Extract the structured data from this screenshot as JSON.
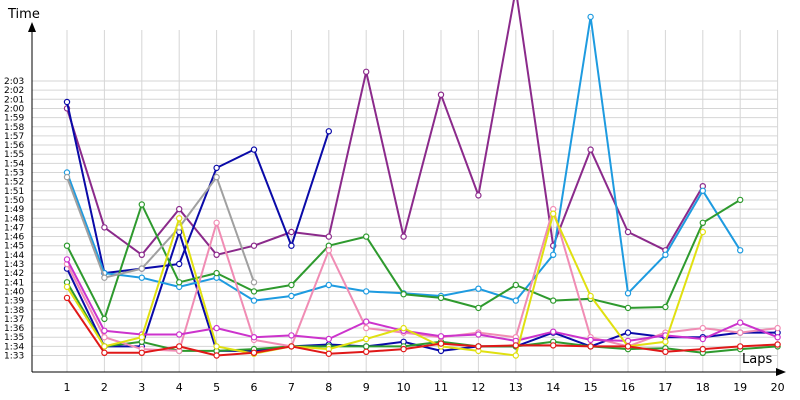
{
  "chart_data": {
    "type": "line",
    "xlabel": "Laps",
    "ylabel": "Time",
    "x": [
      1,
      2,
      3,
      4,
      5,
      6,
      7,
      8,
      9,
      10,
      11,
      12,
      13,
      14,
      15,
      16,
      17,
      18,
      19,
      20
    ],
    "x_ticks": [
      "1",
      "2",
      "3",
      "4",
      "5",
      "6",
      "7",
      "8",
      "9",
      "10",
      "11",
      "12",
      "13",
      "14",
      "15",
      "16",
      "17",
      "18",
      "19",
      "20"
    ],
    "ylim": [
      92.5,
      126
    ],
    "y_ticks": [
      {
        "v": 93,
        "label": "1:33"
      },
      {
        "v": 94,
        "label": "1:34"
      },
      {
        "v": 95,
        "label": "1:35"
      },
      {
        "v": 96,
        "label": "1:36"
      },
      {
        "v": 97,
        "label": "1:37"
      },
      {
        "v": 98,
        "label": "1:38"
      },
      {
        "v": 99,
        "label": "1:39"
      },
      {
        "v": 100,
        "label": "1:40"
      },
      {
        "v": 101,
        "label": "1:41"
      },
      {
        "v": 102,
        "label": "1:42"
      },
      {
        "v": 103,
        "label": "1:43"
      },
      {
        "v": 104,
        "label": "1:44"
      },
      {
        "v": 105,
        "label": "1:45"
      },
      {
        "v": 106,
        "label": "1:46"
      },
      {
        "v": 107,
        "label": "1:47"
      },
      {
        "v": 108,
        "label": "1:48"
      },
      {
        "v": 109,
        "label": "1:49"
      },
      {
        "v": 110,
        "label": "1:50"
      },
      {
        "v": 111,
        "label": "1:51"
      },
      {
        "v": 112,
        "label": "1:52"
      },
      {
        "v": 113,
        "label": "1:53"
      },
      {
        "v": 114,
        "label": "1:54"
      },
      {
        "v": 115,
        "label": "1:55"
      },
      {
        "v": 116,
        "label": "1:56"
      },
      {
        "v": 117,
        "label": "1:57"
      },
      {
        "v": 118,
        "label": "1:58"
      },
      {
        "v": 119,
        "label": "1:59"
      },
      {
        "v": 120,
        "label": "2:00"
      },
      {
        "v": 121,
        "label": "2:01"
      },
      {
        "v": 122,
        "label": "2:02"
      },
      {
        "v": 123,
        "label": "2:03"
      }
    ],
    "grid": true,
    "series": [
      {
        "color": "#8b2a8b",
        "values": [
          120,
          107,
          104,
          109,
          104,
          105,
          106.5,
          106,
          124,
          106,
          121.5,
          110.5,
          133,
          105,
          115.5,
          106.5,
          104.5,
          111.5,
          null,
          null
        ]
      },
      {
        "color": "#0a0aa8",
        "values": [
          120.7,
          102,
          102.5,
          103,
          113.5,
          115.5,
          105,
          117.5,
          null,
          null,
          null,
          null,
          null,
          null,
          null,
          null,
          null,
          null,
          null,
          null
        ]
      },
      {
        "color": "#0a0aa8",
        "values": [
          102.5,
          94,
          94,
          106.5,
          93.5,
          93.5,
          94,
          94.2,
          94,
          94.5,
          93.5,
          94,
          94,
          95.5,
          94,
          95.5,
          95,
          95,
          95.5,
          95.5
        ]
      },
      {
        "color": "#1e9be0",
        "values": [
          113,
          102,
          101.5,
          100.5,
          101.5,
          99,
          99.5,
          100.7,
          100,
          99.8,
          99.5,
          100.3,
          99,
          104,
          130,
          99.8,
          104,
          111,
          104.5,
          null
        ]
      },
      {
        "color": "#2e9a2e",
        "values": [
          105,
          97,
          109.5,
          101,
          102,
          100,
          100.7,
          105,
          106,
          99.7,
          99.3,
          98.2,
          100.7,
          99,
          99.2,
          98.2,
          98.3,
          107.5,
          110,
          null
        ]
      },
      {
        "color": "#2e9a2e",
        "values": [
          101,
          94,
          94.5,
          93.5,
          93.5,
          93.7,
          94,
          94,
          94,
          94,
          94.5,
          94,
          94,
          94.5,
          94,
          93.7,
          93.8,
          93.3,
          93.7,
          94
        ]
      },
      {
        "color": "#a0a0a0",
        "values": [
          112.5,
          101.5,
          102.5,
          107,
          112.5,
          101,
          null,
          null,
          null,
          null,
          null,
          null,
          null,
          null,
          null,
          null,
          null,
          null,
          null,
          null
        ]
      },
      {
        "color": "#f08cb4",
        "values": [
          103,
          95,
          93.7,
          93.5,
          107.5,
          94.7,
          94,
          104.5,
          96,
          95.5,
          95,
          95.5,
          95,
          109,
          95,
          94,
          95.5,
          96,
          95.5,
          96
        ]
      },
      {
        "color": "#cc33cc",
        "values": [
          103.5,
          95.7,
          95.3,
          95.3,
          96,
          95,
          95.2,
          94.8,
          96.7,
          95.7,
          95.1,
          95.3,
          94.6,
          95.6,
          94.7,
          94.6,
          95.2,
          94.8,
          96.6,
          95
        ]
      },
      {
        "color": "#e0e010",
        "values": [
          100.5,
          94,
          95,
          108,
          94,
          93.2,
          94,
          93.7,
          94.8,
          96,
          94,
          93.5,
          93,
          108.5,
          99.5,
          94,
          94.5,
          106.5,
          null,
          null
        ]
      },
      {
        "color": "#e01818",
        "values": [
          99.3,
          93.3,
          93.3,
          94,
          93,
          93.3,
          94,
          93.2,
          93.4,
          93.7,
          94.3,
          94,
          94.1,
          94.1,
          94,
          94,
          93.4,
          93.7,
          94,
          94.2
        ]
      }
    ]
  }
}
